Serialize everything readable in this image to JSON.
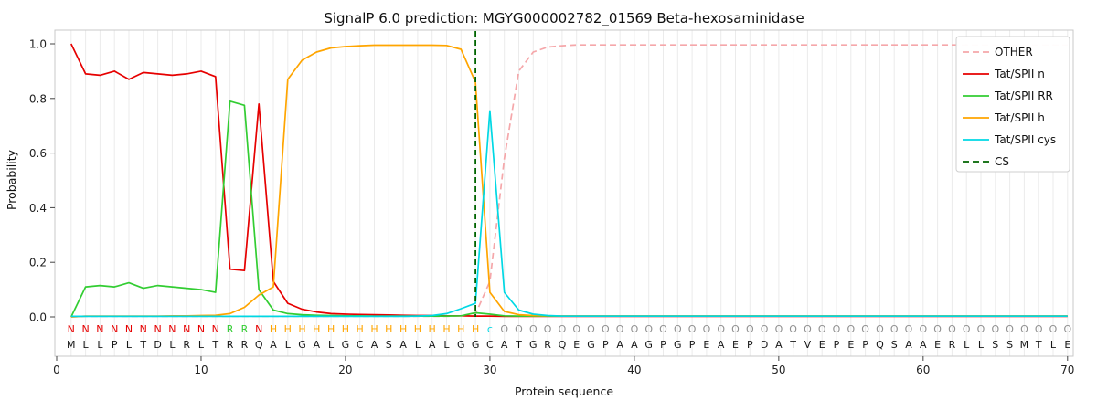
{
  "chart_data": {
    "type": "line",
    "title": "SignalP 6.0 prediction: MGYG000002782_01569 Beta-hexosaminidase",
    "xlabel": "Protein sequence",
    "ylabel": "Probability",
    "xlim": [
      0,
      70
    ],
    "ylim": [
      0.0,
      1.0
    ],
    "x_ticks": [
      0,
      10,
      20,
      30,
      40,
      50,
      60,
      70
    ],
    "y_ticks": [
      "0.0",
      "0.2",
      "0.4",
      "0.6",
      "0.8",
      "1.0"
    ],
    "grid": "vertical light-gray line at every residue position",
    "legend_position": "upper right",
    "sequence": "MLLPLTDLRLTRRQALGALGCASALALGGCATGRQEGPAAGPGPEAEPDATVEPEPQSAAERLLSSMTLE",
    "region_labels": "NNNNNNNNNNNRRNHHHHHHHHHHHHHHHcOOOOOOOOOOOOOOOOOOOOOOOOOOOOOOOOOOOOOOOO",
    "region_colors": {
      "N": "#e60000",
      "R": "#32cd32",
      "H": "#ffa500",
      "c": "#00d8e4",
      "O": "#909090"
    },
    "cs": {
      "label": "CS",
      "color": "#006400",
      "position": 29
    },
    "series": [
      {
        "label": "OTHER",
        "color": "#f5a7aa",
        "dashed": true,
        "values": [
          0.0,
          0.002,
          0.002,
          0.002,
          0.002,
          0.002,
          0.002,
          0.002,
          0.002,
          0.002,
          0.002,
          0.002,
          0.002,
          0.002,
          0.002,
          0.002,
          0.002,
          0.002,
          0.002,
          0.002,
          0.002,
          0.002,
          0.002,
          0.002,
          0.002,
          0.002,
          0.002,
          0.004,
          0.01,
          0.13,
          0.58,
          0.9,
          0.97,
          0.988,
          0.993,
          0.996,
          0.996,
          0.996,
          0.996,
          0.996,
          0.996,
          0.996,
          0.996,
          0.996,
          0.996,
          0.996,
          0.996,
          0.996,
          0.996,
          0.996,
          0.996,
          0.996,
          0.996,
          0.996,
          0.996,
          0.996,
          0.996,
          0.996,
          0.996,
          0.996,
          0.996,
          0.996,
          0.996,
          0.996,
          0.996,
          0.996,
          0.996,
          0.996,
          0.996,
          0.996
        ]
      },
      {
        "label": "Tat/SPII n",
        "color": "#e60000",
        "dashed": false,
        "values": [
          1.0,
          0.89,
          0.885,
          0.9,
          0.87,
          0.895,
          0.89,
          0.885,
          0.89,
          0.9,
          0.88,
          0.175,
          0.17,
          0.78,
          0.13,
          0.05,
          0.028,
          0.018,
          0.012,
          0.01,
          0.009,
          0.008,
          0.007,
          0.006,
          0.005,
          0.005,
          0.004,
          0.004,
          0.003,
          0.003,
          0.002,
          0.002,
          0.002,
          0.002,
          0.002,
          0.002,
          0.002,
          0.002,
          0.002,
          0.002,
          0.002,
          0.002,
          0.002,
          0.002,
          0.002,
          0.002,
          0.002,
          0.002,
          0.002,
          0.002,
          0.002,
          0.002,
          0.002,
          0.002,
          0.002,
          0.002,
          0.002,
          0.002,
          0.002,
          0.002,
          0.002,
          0.002,
          0.002,
          0.002,
          0.002,
          0.002,
          0.002,
          0.002,
          0.002,
          0.002
        ]
      },
      {
        "label": "Tat/SPII RR",
        "color": "#32cd32",
        "dashed": false,
        "values": [
          0.0,
          0.11,
          0.115,
          0.11,
          0.125,
          0.105,
          0.115,
          0.11,
          0.105,
          0.1,
          0.09,
          0.79,
          0.775,
          0.1,
          0.025,
          0.012,
          0.008,
          0.006,
          0.005,
          0.004,
          0.004,
          0.003,
          0.003,
          0.003,
          0.003,
          0.003,
          0.003,
          0.004,
          0.015,
          0.01,
          0.004,
          0.003,
          0.003,
          0.003,
          0.003,
          0.003,
          0.003,
          0.003,
          0.003,
          0.003,
          0.003,
          0.003,
          0.003,
          0.003,
          0.003,
          0.003,
          0.003,
          0.003,
          0.003,
          0.003,
          0.003,
          0.003,
          0.003,
          0.003,
          0.003,
          0.003,
          0.003,
          0.003,
          0.003,
          0.003,
          0.003,
          0.003,
          0.003,
          0.003,
          0.003,
          0.003,
          0.003,
          0.003,
          0.003,
          0.003
        ]
      },
      {
        "label": "Tat/SPII h",
        "color": "#ffa500",
        "dashed": false,
        "values": [
          0.0,
          0.003,
          0.003,
          0.003,
          0.003,
          0.003,
          0.003,
          0.004,
          0.004,
          0.005,
          0.006,
          0.012,
          0.035,
          0.08,
          0.11,
          0.87,
          0.94,
          0.97,
          0.985,
          0.99,
          0.993,
          0.995,
          0.995,
          0.995,
          0.995,
          0.995,
          0.994,
          0.98,
          0.86,
          0.09,
          0.02,
          0.008,
          0.005,
          0.004,
          0.004,
          0.004,
          0.004,
          0.004,
          0.004,
          0.004,
          0.004,
          0.004,
          0.004,
          0.004,
          0.004,
          0.004,
          0.004,
          0.004,
          0.004,
          0.004,
          0.004,
          0.004,
          0.004,
          0.004,
          0.004,
          0.004,
          0.004,
          0.004,
          0.004,
          0.004,
          0.004,
          0.004,
          0.004,
          0.004,
          0.004,
          0.004,
          0.004,
          0.004,
          0.004,
          0.004
        ]
      },
      {
        "label": "Tat/SPII cys",
        "color": "#00d8e4",
        "dashed": false,
        "values": [
          0.002,
          0.002,
          0.002,
          0.002,
          0.002,
          0.002,
          0.002,
          0.002,
          0.002,
          0.002,
          0.002,
          0.002,
          0.002,
          0.002,
          0.002,
          0.002,
          0.002,
          0.002,
          0.002,
          0.002,
          0.002,
          0.002,
          0.002,
          0.002,
          0.003,
          0.005,
          0.012,
          0.03,
          0.05,
          0.755,
          0.09,
          0.025,
          0.01,
          0.005,
          0.003,
          0.003,
          0.003,
          0.003,
          0.003,
          0.003,
          0.003,
          0.003,
          0.003,
          0.003,
          0.003,
          0.003,
          0.003,
          0.003,
          0.003,
          0.003,
          0.003,
          0.003,
          0.003,
          0.003,
          0.003,
          0.003,
          0.003,
          0.003,
          0.003,
          0.003,
          0.003,
          0.003,
          0.003,
          0.003,
          0.003,
          0.003,
          0.003,
          0.003,
          0.003,
          0.003
        ]
      }
    ]
  }
}
